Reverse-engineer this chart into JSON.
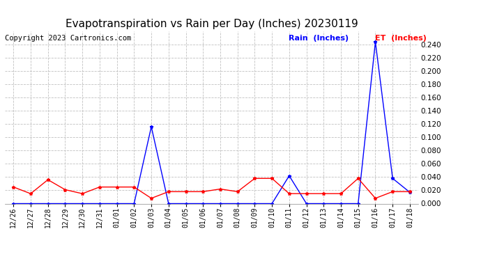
{
  "title": "Evapotranspiration vs Rain per Day (Inches) 20230119",
  "copyright": "Copyright 2023 Cartronics.com",
  "x_labels": [
    "12/26",
    "12/27",
    "12/28",
    "12/29",
    "12/30",
    "12/31",
    "01/01",
    "01/02",
    "01/03",
    "01/04",
    "01/05",
    "01/06",
    "01/07",
    "01/08",
    "01/09",
    "01/10",
    "01/11",
    "01/12",
    "01/13",
    "01/14",
    "01/15",
    "01/16",
    "01/17",
    "01/18"
  ],
  "rain_inches": [
    0.0,
    0.0,
    0.0,
    0.0,
    0.0,
    0.0,
    0.0,
    0.0,
    0.116,
    0.0,
    0.0,
    0.0,
    0.0,
    0.0,
    0.0,
    0.0,
    0.042,
    0.0,
    0.0,
    0.0,
    0.0,
    0.244,
    0.038,
    0.017
  ],
  "et_inches": [
    0.025,
    0.015,
    0.036,
    0.021,
    0.015,
    0.025,
    0.025,
    0.025,
    0.008,
    0.018,
    0.018,
    0.018,
    0.022,
    0.018,
    0.038,
    0.038,
    0.015,
    0.015,
    0.015,
    0.015,
    0.038,
    0.008,
    0.018,
    0.018
  ],
  "rain_color": "blue",
  "et_color": "red",
  "ylim": [
    0.0,
    0.26
  ],
  "yticks": [
    0.0,
    0.02,
    0.04,
    0.06,
    0.08,
    0.1,
    0.12,
    0.14,
    0.16,
    0.18,
    0.2,
    0.22,
    0.24
  ],
  "background_color": "white",
  "grid_color": "#c0c0c0",
  "title_fontsize": 11,
  "copyright_fontsize": 7.5,
  "legend_rain_label": "Rain  (Inches)",
  "legend_et_label": "ET  (Inches)"
}
